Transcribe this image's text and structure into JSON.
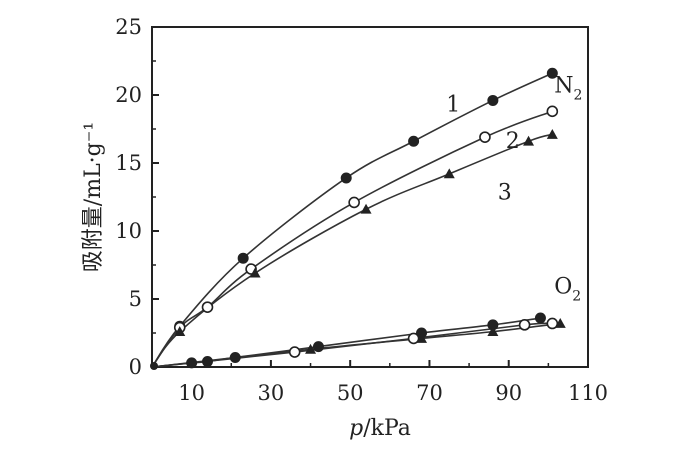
{
  "chart_data": {
    "type": "scatter",
    "xlabel": "p/kPa",
    "ylabel": "吸附量/mL·g⁻¹",
    "xlim": [
      0,
      110
    ],
    "ylim": [
      0,
      25
    ],
    "xticks": [
      10,
      30,
      50,
      70,
      90,
      110
    ],
    "yticks": [
      0,
      5,
      10,
      15,
      20,
      25
    ],
    "grid": false,
    "groups": [
      {
        "label": "N",
        "sub": "2"
      },
      {
        "label": "O",
        "sub": "2"
      }
    ],
    "series": [
      {
        "name": "1",
        "group": "N2",
        "marker": "filled-circle",
        "x": [
          0,
          7,
          23,
          49,
          66,
          86,
          101
        ],
        "y": [
          0,
          3.0,
          8.0,
          13.9,
          16.6,
          19.6,
          21.6
        ]
      },
      {
        "name": "2",
        "group": "N2",
        "marker": "open-circle",
        "x": [
          0,
          7,
          14,
          25,
          51,
          84,
          101
        ],
        "y": [
          0,
          2.9,
          4.4,
          7.2,
          12.1,
          16.9,
          18.8
        ]
      },
      {
        "name": "3",
        "group": "N2",
        "marker": "filled-triangle",
        "x": [
          0,
          7,
          26,
          54,
          75,
          95,
          101
        ],
        "y": [
          0,
          2.6,
          6.9,
          11.6,
          14.2,
          16.6,
          17.1
        ]
      },
      {
        "name": "",
        "group": "O2",
        "marker": "filled-circle",
        "x": [
          0,
          10,
          14,
          21,
          42,
          68,
          86,
          98
        ],
        "y": [
          0,
          0.3,
          0.4,
          0.7,
          1.5,
          2.5,
          3.1,
          3.6
        ]
      },
      {
        "name": "",
        "group": "O2",
        "marker": "open-circle",
        "x": [
          0,
          36,
          66,
          94,
          101
        ],
        "y": [
          0,
          1.1,
          2.1,
          3.1,
          3.2
        ]
      },
      {
        "name": "",
        "group": "O2",
        "marker": "filled-triangle",
        "x": [
          0,
          40,
          68,
          86,
          103
        ],
        "y": [
          0,
          1.3,
          2.1,
          2.6,
          3.2
        ]
      }
    ]
  }
}
